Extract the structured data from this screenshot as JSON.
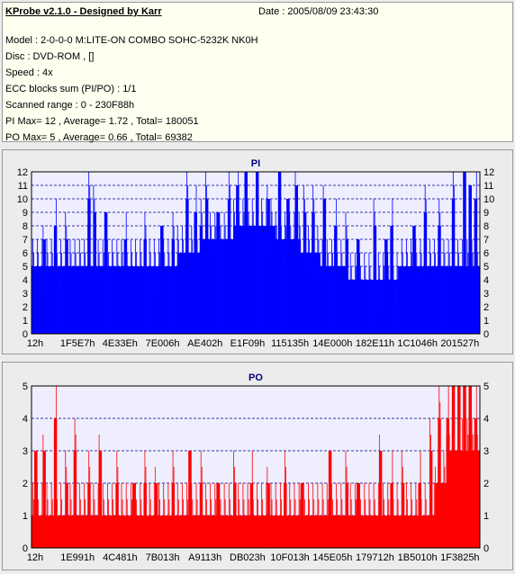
{
  "info": {
    "title": "KProbe v2.1.0 - Designed by Karr",
    "date": "Date : 2005/08/09 23:43:30",
    "lines": [
      "Model : 2-0-0-0 M:LITE-ON COMBO SOHC-5232K NK0H",
      "Disc : DVD-ROM ,  []",
      "Speed : 4x",
      "ECC blocks sum (PI/PO) : 1/1",
      "Scanned range : 0 - 230F88h",
      "PI Max= 12 , Average= 1.72 , Total= 180051",
      "PO Max= 5 , Average= 0.66 , Total= 69382"
    ]
  },
  "colors": {
    "pi_fill": "#0000ff",
    "po_fill": "#ff0000",
    "plot_bg": "#eeeeff",
    "grid": "#000080",
    "title": "#000080"
  },
  "chart_data": [
    {
      "type": "bar",
      "title": "PI",
      "xlabel": "",
      "ylabel": "",
      "ylim": [
        0,
        12
      ],
      "yticks": [
        0,
        1,
        2,
        3,
        4,
        5,
        6,
        7,
        8,
        9,
        10,
        11,
        12
      ],
      "xtick_labels": [
        "12h",
        "1F5E7h",
        "4E33Eh",
        "7E006h",
        "AE402h",
        "E1F09h",
        "115135h",
        "14E000h",
        "182E11h",
        "1C1046h",
        "201527h"
      ],
      "grid": true,
      "series": [
        {
          "baseline": [
            5,
            5,
            5,
            5,
            5,
            5,
            5,
            5,
            5,
            5,
            5,
            5,
            5,
            5,
            5,
            5,
            5,
            5,
            5,
            5,
            5,
            5,
            5,
            5,
            5,
            5,
            5,
            5,
            5,
            5,
            5,
            5,
            5,
            5,
            5,
            5,
            5,
            5,
            5,
            5,
            5,
            5,
            5,
            5,
            5,
            5,
            5,
            5,
            5,
            5,
            5,
            5,
            6,
            6,
            6,
            6,
            6,
            6,
            6,
            6,
            7,
            7,
            7,
            7,
            7,
            7,
            7,
            7,
            7,
            7,
            7,
            7,
            8,
            8,
            8,
            8,
            8,
            8,
            8,
            8,
            8,
            8,
            8,
            8,
            8,
            8,
            8,
            7,
            7,
            7,
            7,
            7,
            7,
            7,
            7,
            7,
            6,
            6,
            6,
            6,
            6,
            6,
            6,
            5,
            5,
            5,
            5,
            5,
            5,
            5,
            5,
            5,
            5,
            4,
            4,
            4,
            4,
            4,
            4,
            4,
            4,
            4,
            4,
            4,
            4,
            4,
            4,
            4,
            4,
            4,
            4,
            5,
            5,
            5,
            5,
            5,
            5,
            5,
            5,
            5,
            5,
            5,
            5,
            5,
            5,
            5,
            5,
            5,
            5,
            5,
            5,
            5,
            5,
            5,
            5,
            5,
            5,
            5,
            5,
            5
          ],
          "peaks": [
            [
              4,
              7
            ],
            [
              8,
              8
            ],
            [
              12,
              7
            ],
            [
              20,
              10
            ],
            [
              26,
              9
            ],
            [
              33,
              7
            ],
            [
              40,
              7
            ],
            [
              46,
              8
            ],
            [
              50,
              7
            ],
            [
              58,
              9
            ],
            [
              60,
              8
            ],
            [
              66,
              9
            ],
            [
              70,
              10
            ],
            [
              76,
              12
            ],
            [
              80,
              12
            ],
            [
              84,
              10
            ],
            [
              88,
              12
            ],
            [
              94,
              11
            ],
            [
              100,
              9
            ],
            [
              104,
              10
            ],
            [
              108,
              8
            ],
            [
              116,
              7
            ],
            [
              122,
              8
            ],
            [
              128,
              8
            ],
            [
              136,
              8
            ],
            [
              140,
              9
            ],
            [
              150,
              10
            ],
            [
              154,
              12
            ],
            [
              156,
              11
            ],
            [
              158,
              10
            ],
            [
              22,
              9
            ],
            [
              55,
              10
            ],
            [
              62,
              10
            ],
            [
              73,
              11
            ],
            [
              91,
              10
            ],
            [
              97,
              9
            ],
            [
              112,
              7
            ],
            [
              126,
              7
            ],
            [
              145,
              8
            ]
          ]
        }
      ]
    },
    {
      "type": "bar",
      "title": "PO",
      "xlabel": "",
      "ylabel": "",
      "ylim": [
        0,
        5
      ],
      "yticks": [
        0,
        1,
        2,
        3,
        4,
        5
      ],
      "xtick_labels": [
        "12h",
        "1E991h",
        "4C481h",
        "7B013h",
        "A9113h",
        "DB023h",
        "10F013h",
        "145E05h",
        "179712h",
        "1B5010h",
        "1F3825h"
      ],
      "grid": true,
      "series": [
        {
          "baseline": [
            1,
            1,
            1,
            1,
            1,
            1,
            1,
            1,
            1,
            1,
            1,
            1,
            1,
            1,
            1,
            1,
            1,
            1,
            1,
            1,
            1,
            1,
            1,
            1,
            1,
            1,
            1,
            1,
            1,
            1,
            1,
            1,
            1,
            1,
            1,
            1,
            1,
            1,
            1,
            1,
            1,
            1,
            1,
            1,
            1,
            1,
            1,
            1,
            1,
            1,
            1,
            1,
            1,
            1,
            1,
            1,
            1,
            1,
            1,
            1,
            1,
            1,
            1,
            1,
            1,
            1,
            1,
            1,
            1,
            1,
            1,
            1,
            1,
            1,
            1,
            1,
            1,
            1,
            1,
            1,
            1,
            1,
            1,
            1,
            1,
            1,
            1,
            1,
            1,
            1,
            1,
            1,
            1,
            1,
            1,
            1,
            1,
            1,
            1,
            1,
            1,
            1,
            1,
            1,
            1,
            1,
            1,
            1,
            1,
            1,
            1,
            1,
            1,
            1,
            1,
            1,
            1,
            1,
            1,
            1,
            1,
            1,
            1,
            1,
            1,
            1,
            1,
            1,
            1,
            1,
            1,
            1,
            1,
            1,
            1,
            1,
            1,
            1,
            1,
            1,
            1,
            1,
            1,
            1,
            2,
            2,
            2,
            2,
            2,
            3,
            3,
            3,
            3,
            3,
            3,
            3,
            3,
            3,
            3,
            3
          ],
          "peaks": [
            [
              1,
              3
            ],
            [
              4,
              3
            ],
            [
              8,
              4
            ],
            [
              12,
              2
            ],
            [
              15,
              3
            ],
            [
              20,
              2
            ],
            [
              24,
              3
            ],
            [
              30,
              2
            ],
            [
              36,
              2
            ],
            [
              40,
              2
            ],
            [
              44,
              2
            ],
            [
              50,
              2
            ],
            [
              56,
              3
            ],
            [
              60,
              2
            ],
            [
              66,
              2
            ],
            [
              72,
              2
            ],
            [
              78,
              2
            ],
            [
              84,
              2
            ],
            [
              90,
              2
            ],
            [
              96,
              2
            ],
            [
              106,
              3
            ],
            [
              112,
              2
            ],
            [
              116,
              2
            ],
            [
              124,
              3
            ],
            [
              128,
              2
            ],
            [
              132,
              2
            ],
            [
              138,
              2
            ],
            [
              142,
              3
            ],
            [
              145,
              4
            ],
            [
              148,
              4
            ],
            [
              150,
              5
            ],
            [
              152,
              5
            ],
            [
              154,
              5
            ],
            [
              156,
              5
            ],
            [
              158,
              4
            ]
          ]
        }
      ]
    }
  ]
}
